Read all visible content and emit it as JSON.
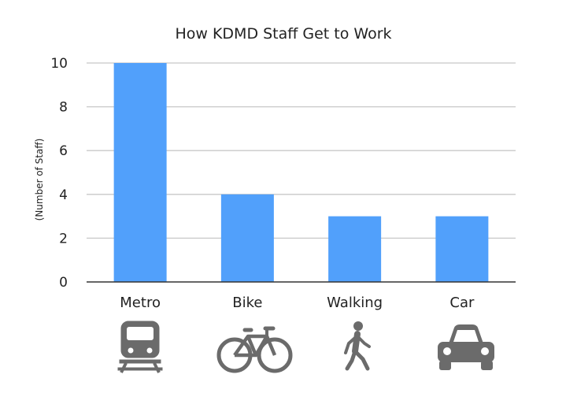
{
  "chart_data": {
    "type": "bar",
    "title": "How KDMD Staff Get to Work",
    "ylabel": "(Number of Staff)",
    "xlabel": "",
    "categories": [
      "Metro",
      "Bike",
      "Walking",
      "Car"
    ],
    "values": [
      10,
      4,
      3,
      3
    ],
    "ylim": [
      0,
      10
    ],
    "yticks": [
      0,
      2,
      4,
      6,
      8,
      10
    ],
    "grid": true,
    "bar_color": "#51a0fb",
    "icons": [
      "train-icon",
      "bicycle-icon",
      "pedestrian-icon",
      "car-icon"
    ],
    "icon_color": "#6b6b6b"
  }
}
